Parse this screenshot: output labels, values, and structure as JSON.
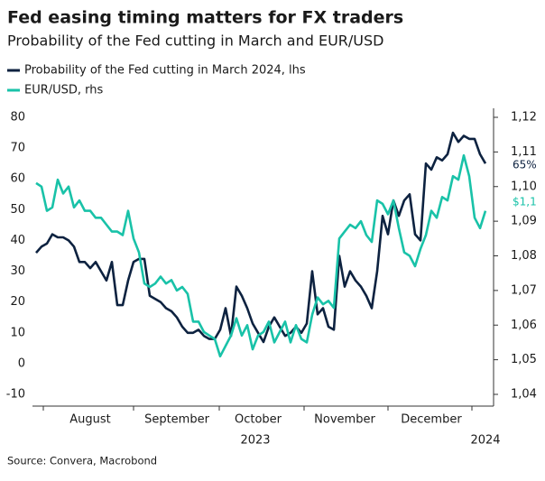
{
  "chart_data": {
    "type": "line",
    "title": "Fed easing timing matters for FX traders",
    "subtitle": "Probability of the Fed cutting in March and EUR/USD",
    "source": "Source: Convera, Macrobond",
    "categories": [
      null,
      null,
      null,
      null,
      null,
      null,
      null,
      null,
      null,
      null,
      "August",
      null,
      null,
      null,
      null,
      null,
      null,
      null,
      null,
      null,
      null,
      null,
      null,
      null,
      null,
      null,
      "September",
      null,
      null,
      null,
      null,
      null,
      null,
      null,
      null,
      null,
      null,
      null,
      null,
      null,
      null,
      "October",
      null,
      null,
      null,
      null,
      null,
      null,
      null,
      null,
      null,
      null,
      null,
      null,
      null,
      null,
      null,
      "November",
      null,
      null,
      null,
      null,
      null,
      null,
      null,
      null,
      null,
      null,
      null,
      null,
      null,
      null,
      null,
      "December",
      null,
      null,
      null,
      null,
      null,
      null,
      null,
      null,
      null,
      null
    ],
    "year_labels": [
      "2023",
      "2024"
    ],
    "series": [
      {
        "name": "Probability of the Fed cutting in March 2024, lhs",
        "color": "#0d2240",
        "values": [
          36,
          38,
          39,
          42,
          41,
          41,
          40,
          38,
          33,
          33,
          31,
          33,
          30,
          27,
          33,
          19,
          19,
          27,
          33,
          34,
          34,
          22,
          21,
          20,
          18,
          17,
          15,
          12,
          10,
          10,
          11,
          9,
          8,
          8,
          11,
          18,
          9,
          25,
          22,
          18,
          13,
          10,
          7,
          12,
          15,
          12,
          9,
          10,
          12,
          10,
          13,
          30,
          16,
          18,
          12,
          11,
          35,
          25,
          30,
          27,
          25,
          22,
          18,
          30,
          48,
          42,
          53,
          48,
          53,
          55,
          42,
          40,
          65,
          63,
          67,
          66,
          68,
          75,
          72,
          74,
          73,
          73,
          68,
          65
        ]
      },
      {
        "name": "EUR/USD, rhs",
        "color": "#19c2a8",
        "axis": "y2",
        "values": [
          1.101,
          1.1,
          1.093,
          1.094,
          1.102,
          1.098,
          1.1,
          1.094,
          1.096,
          1.093,
          1.093,
          1.091,
          1.091,
          1.089,
          1.087,
          1.087,
          1.086,
          1.093,
          1.085,
          1.081,
          1.072,
          1.071,
          1.072,
          1.074,
          1.072,
          1.073,
          1.07,
          1.071,
          1.069,
          1.061,
          1.061,
          1.058,
          1.057,
          1.056,
          1.051,
          1.054,
          1.057,
          1.062,
          1.057,
          1.06,
          1.053,
          1.057,
          1.058,
          1.061,
          1.055,
          1.058,
          1.061,
          1.055,
          1.06,
          1.056,
          1.055,
          1.063,
          1.068,
          1.066,
          1.067,
          1.065,
          1.085,
          1.087,
          1.089,
          1.088,
          1.09,
          1.086,
          1.084,
          1.096,
          1.095,
          1.092,
          1.096,
          1.088,
          1.081,
          1.08,
          1.077,
          1.082,
          1.086,
          1.093,
          1.091,
          1.097,
          1.096,
          1.103,
          1.102,
          1.109,
          1.103,
          1.091,
          1.088,
          1.093
        ]
      }
    ],
    "ylim": [
      -10,
      80
    ],
    "yticks": [
      -10,
      0,
      10,
      20,
      30,
      40,
      50,
      60,
      70,
      80
    ],
    "y2lim": [
      1.04,
      1.12
    ],
    "y2ticks": [
      {
        "value": 1.04,
        "label": "1,04"
      },
      {
        "value": 1.05,
        "label": "1,05"
      },
      {
        "value": 1.06,
        "label": "1,06"
      },
      {
        "value": 1.07,
        "label": "1,07"
      },
      {
        "value": 1.08,
        "label": "1,08"
      },
      {
        "value": 1.09,
        "label": "1,09"
      },
      {
        "value": 1.1,
        "label": "1,10"
      },
      {
        "value": 1.11,
        "label": "1,11"
      },
      {
        "value": 1.12,
        "label": "1,12"
      }
    ],
    "annotations": [
      {
        "text": "65%",
        "color": "#0d2240"
      },
      {
        "text": "$1,1",
        "color": "#19c2a8"
      }
    ]
  }
}
